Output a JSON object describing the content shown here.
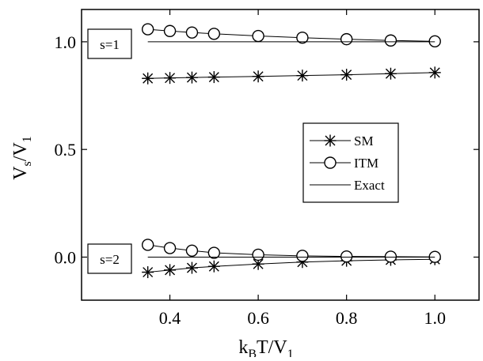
{
  "chart_data": {
    "type": "scatter",
    "x_label": {
      "main": "k",
      "sub1": "B",
      "mid": "T/V",
      "sub2": "1"
    },
    "y_label": {
      "main": "V",
      "sub1": "s",
      "mid": "/V",
      "sub2": "1"
    },
    "xlim": [
      0.2,
      1.1
    ],
    "ylim": [
      -0.2,
      1.15
    ],
    "x_ticks": [
      0.4,
      0.6,
      0.8,
      1.0
    ],
    "x_tick_labels": [
      "0.4",
      "0.6",
      "0.8",
      "1.0"
    ],
    "y_ticks": [
      0.0,
      0.5,
      1.0
    ],
    "y_tick_labels": [
      "0.0",
      "0.5",
      "1.0"
    ],
    "grid": false,
    "legend_position": "center-right",
    "box_labels": [
      "s=1",
      "s=2"
    ],
    "series": [
      {
        "name": "SM",
        "marker": "asterisk",
        "groups": [
          {
            "label": "s=1",
            "x": [
              0.35,
              0.4,
              0.45,
              0.5,
              0.6,
              0.7,
              0.8,
              0.9,
              1.0
            ],
            "y": [
              0.83,
              0.832,
              0.834,
              0.836,
              0.839,
              0.843,
              0.847,
              0.852,
              0.857
            ]
          },
          {
            "label": "s=2",
            "x": [
              0.35,
              0.4,
              0.45,
              0.5,
              0.6,
              0.7,
              0.8,
              0.9,
              1.0
            ],
            "y": [
              -0.07,
              -0.06,
              -0.05,
              -0.043,
              -0.032,
              -0.023,
              -0.017,
              -0.013,
              -0.01
            ]
          }
        ]
      },
      {
        "name": "ITM",
        "marker": "circle",
        "groups": [
          {
            "label": "s=1",
            "x": [
              0.35,
              0.4,
              0.45,
              0.5,
              0.6,
              0.7,
              0.8,
              0.9,
              1.0
            ],
            "y": [
              1.058,
              1.05,
              1.043,
              1.037,
              1.027,
              1.019,
              1.012,
              1.006,
              1.002
            ]
          },
          {
            "label": "s=2",
            "x": [
              0.35,
              0.4,
              0.45,
              0.5,
              0.6,
              0.7,
              0.8,
              0.9,
              1.0
            ],
            "y": [
              0.057,
              0.042,
              0.03,
              0.02,
              0.011,
              0.006,
              0.003,
              0.002,
              0.001
            ]
          }
        ]
      },
      {
        "name": "Exact",
        "marker": "line",
        "groups": [
          {
            "label": "s=1",
            "x": [
              0.35,
              1.0
            ],
            "y": [
              1.0,
              1.0
            ]
          },
          {
            "label": "s=2",
            "x": [
              0.35,
              1.0
            ],
            "y": [
              0.0,
              0.0
            ]
          }
        ]
      }
    ]
  }
}
